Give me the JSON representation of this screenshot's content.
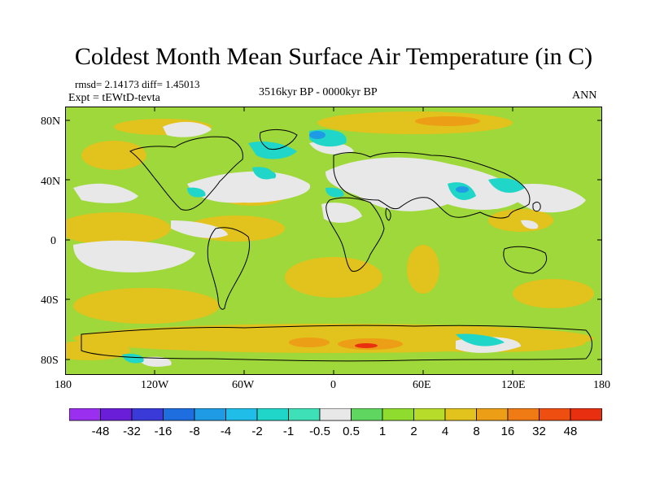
{
  "title": "Coldest Month Mean Surface Air Temperature (in C)",
  "stats": "rmsd= 2.14173 diff= 1.45013",
  "expt": "Expt = tEWtD-tevta",
  "period": "3516kyr BP - 0000kyr BP",
  "season": "ANN",
  "lat_labels": [
    "80N",
    "40N",
    "0",
    "40S",
    "80S"
  ],
  "lon_labels": [
    "180",
    "120W",
    "60W",
    "0",
    "60E",
    "120E",
    "180"
  ],
  "colorbar": {
    "labels": [
      "-48",
      "-32",
      "-16",
      "-8",
      "-4",
      "-2",
      "-1",
      "-0.5",
      "0.5",
      "1",
      "2",
      "4",
      "8",
      "16",
      "32",
      "48"
    ],
    "colors": [
      "#9a2ff0",
      "#6a1ed8",
      "#3a3ad8",
      "#1e6ee0",
      "#1f9be6",
      "#20bde8",
      "#20d6c8",
      "#3ee0b8",
      "#e8e8e8",
      "#5fd65f",
      "#8fdc2e",
      "#b8dc2a",
      "#e2c21c",
      "#ec9e16",
      "#f07a14",
      "#ee4e10",
      "#e83010"
    ]
  },
  "colors": {
    "ocean_base": "#9ed83a",
    "warm": "#e2c21c",
    "neutral": "#e8e8e8",
    "cool": "#20d6c8",
    "hot": "#f07a14"
  }
}
